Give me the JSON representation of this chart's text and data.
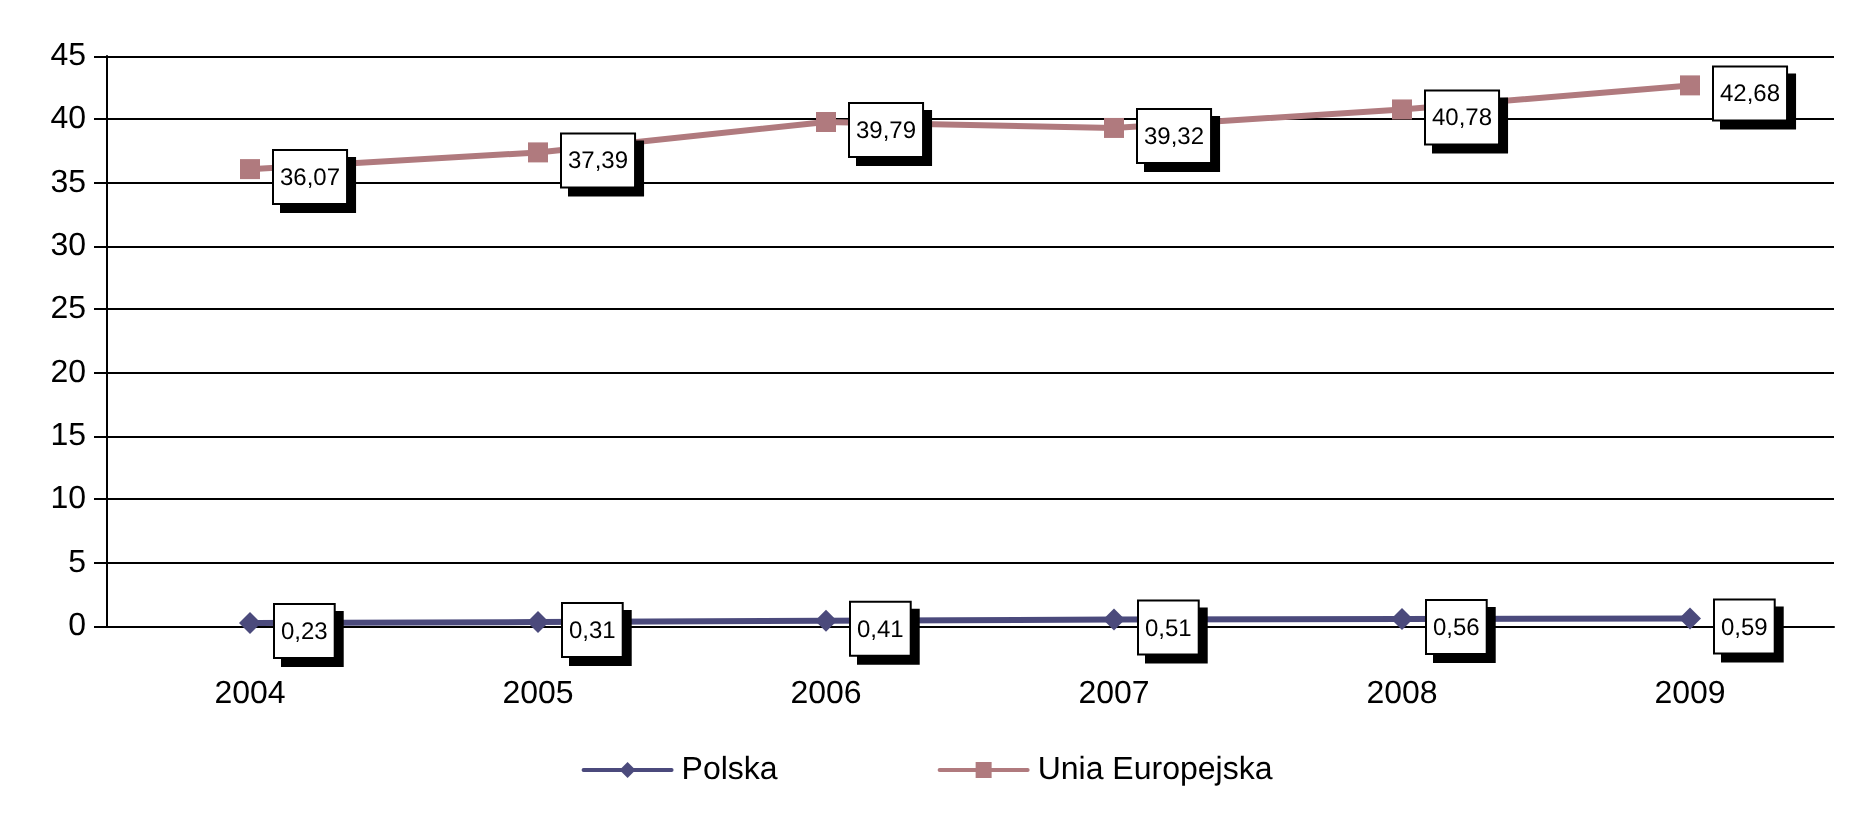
{
  "chart_data": {
    "type": "line",
    "categories": [
      "2004",
      "2005",
      "2006",
      "2007",
      "2008",
      "2009"
    ],
    "series": [
      {
        "name": "Polska",
        "color": "#4b4a7c",
        "marker": "diamond",
        "values": [
          0.23,
          0.31,
          0.41,
          0.51,
          0.56,
          0.59
        ],
        "value_labels": [
          "0,23",
          "0,31",
          "0,41",
          "0,51",
          "0,56",
          "0,59"
        ]
      },
      {
        "name": "Unia Europejska",
        "color": "#b07a7e",
        "marker": "square",
        "values": [
          36.07,
          37.39,
          39.79,
          39.32,
          40.78,
          42.68
        ],
        "value_labels": [
          "36,07",
          "37,39",
          "39,79",
          "39,32",
          "40,78",
          "42,68"
        ]
      }
    ],
    "ylim": [
      0,
      45
    ],
    "yticks": [
      0,
      5,
      10,
      15,
      20,
      25,
      30,
      35,
      40,
      45
    ],
    "grid": "y",
    "legend": "bottom",
    "line_style": "solid"
  }
}
